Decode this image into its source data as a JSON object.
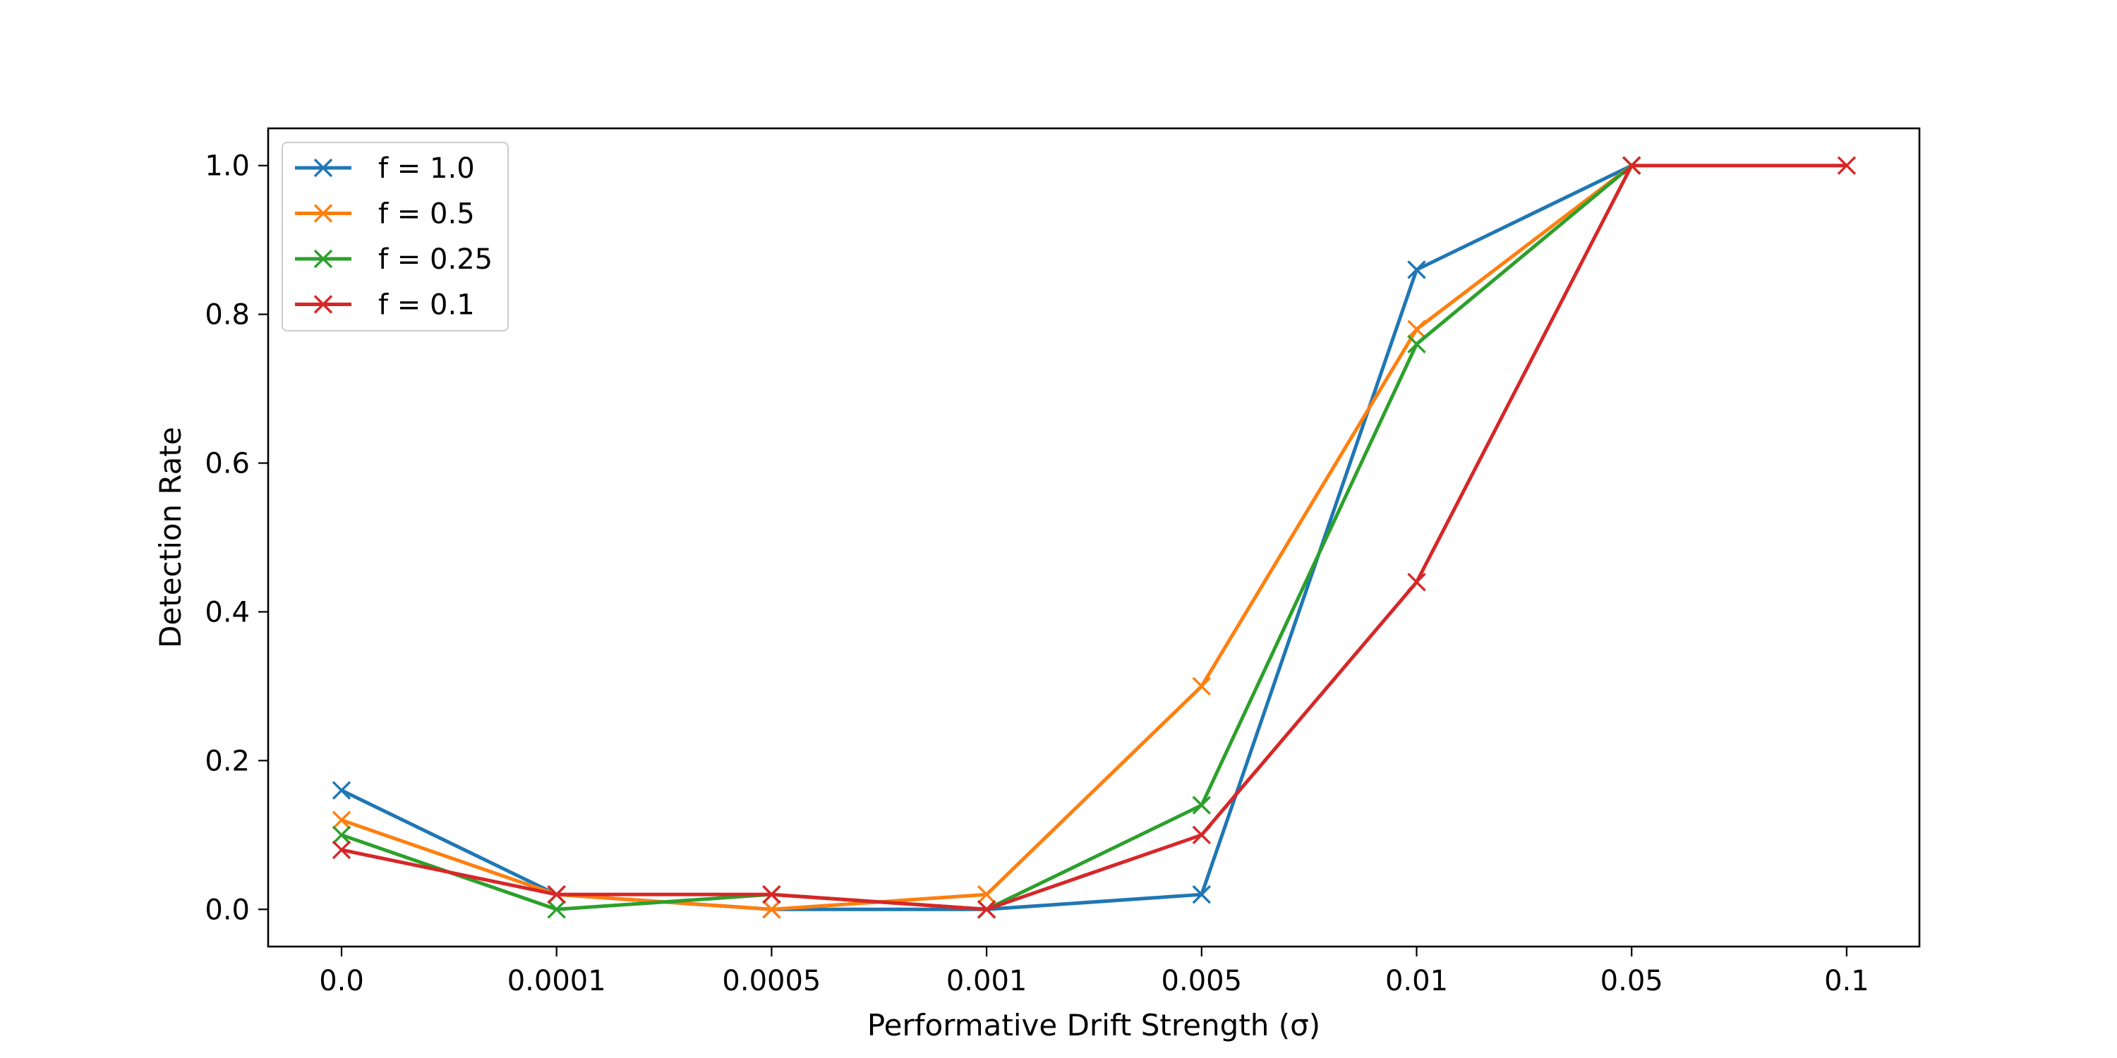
{
  "chart_data": {
    "type": "line",
    "title": "",
    "xlabel": "Performative Drift Strength (σ)",
    "ylabel": "Detection Rate",
    "categories": [
      "0.0",
      "0.0001",
      "0.0005",
      "0.001",
      "0.005",
      "0.01",
      "0.05",
      "0.1"
    ],
    "yticks": [
      "0.0",
      "0.2",
      "0.4",
      "0.6",
      "0.8",
      "1.0"
    ],
    "ylim": [
      -0.05,
      1.05
    ],
    "grid": false,
    "legend_position": "top-left",
    "marker": "x",
    "series": [
      {
        "name": "f = 1.0",
        "color": "#1f77b4",
        "values": [
          0.16,
          0.02,
          0.0,
          0.0,
          0.02,
          0.86,
          1.0,
          null
        ]
      },
      {
        "name": "f = 0.5",
        "color": "#ff7f0e",
        "values": [
          0.12,
          0.02,
          0.0,
          0.02,
          0.3,
          0.78,
          1.0,
          null
        ]
      },
      {
        "name": "f = 0.25",
        "color": "#2ca02c",
        "values": [
          0.1,
          0.0,
          0.02,
          0.0,
          0.14,
          0.76,
          1.0,
          null
        ]
      },
      {
        "name": "f = 0.1",
        "color": "#d62728",
        "values": [
          0.08,
          0.02,
          0.02,
          0.0,
          0.1,
          0.44,
          1.0,
          1.0
        ]
      }
    ]
  }
}
